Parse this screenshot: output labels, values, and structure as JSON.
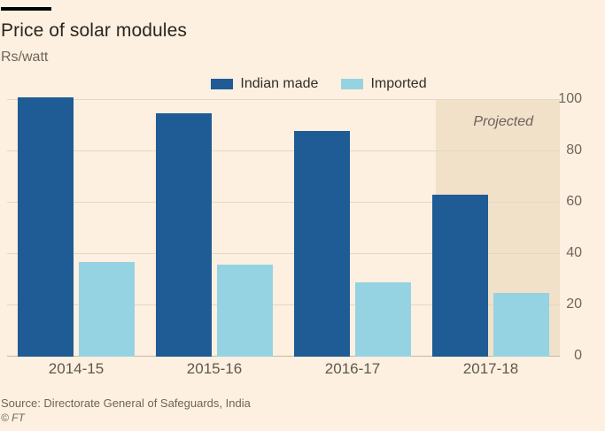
{
  "header": {
    "title": "Price of solar modules",
    "subtitle": "Rs/watt"
  },
  "legend": [
    {
      "label": "Indian made",
      "color": "#1f5b94"
    },
    {
      "label": "Imported",
      "color": "#95d3e3"
    }
  ],
  "annotations": {
    "projected_label": "Projected"
  },
  "footer": {
    "source": "Source: Directorate General of Safeguards, India",
    "copyright": "© FT"
  },
  "chart_data": {
    "type": "bar",
    "title": "Price of solar modules",
    "ylabel": "Rs/watt",
    "categories": [
      "2014-15",
      "2015-16",
      "2016-17",
      "2017-18"
    ],
    "series": [
      {
        "name": "Indian made",
        "color": "#1f5b94",
        "values": [
          101,
          95,
          88,
          63
        ]
      },
      {
        "name": "Imported",
        "color": "#95d3e3",
        "values": [
          37,
          36,
          29,
          25
        ]
      }
    ],
    "ylim": [
      0,
      100
    ],
    "yticks": [
      0,
      20,
      40,
      60,
      80,
      100
    ],
    "grid": true,
    "legend_position": "top-center",
    "yaxis_side": "right",
    "projected_categories": [
      "2017-18"
    ],
    "colors": {
      "background": "#fdf0e0",
      "projected_band": "#f1e1c9",
      "gridline": "#e6d7c3"
    }
  }
}
